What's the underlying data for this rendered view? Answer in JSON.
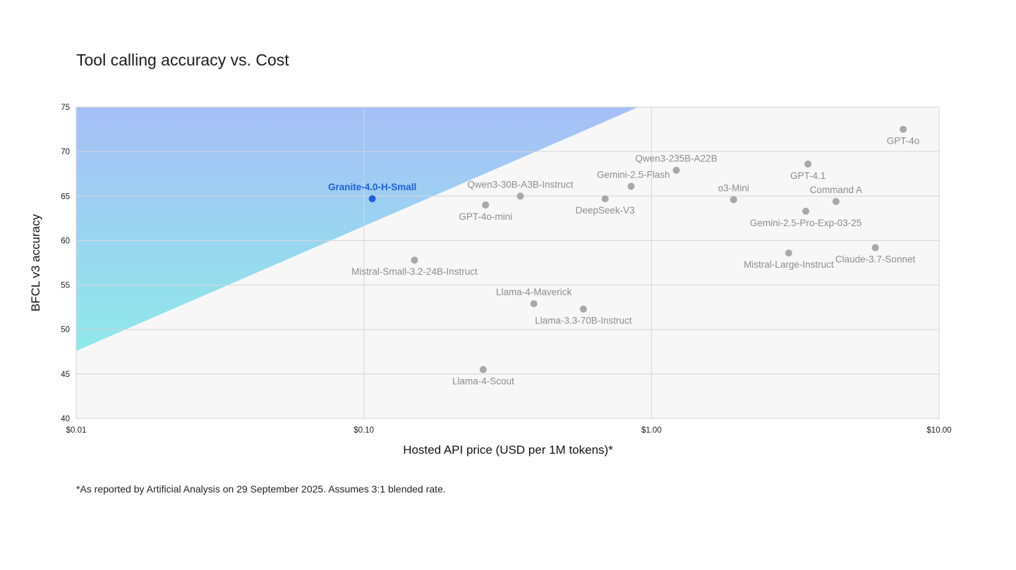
{
  "chart_data": {
    "type": "scatter",
    "title": "Tool calling accuracy vs. Cost",
    "xlabel": "Hosted API price (USD per 1M tokens)*",
    "ylabel": "BFCL v3 accuracy",
    "xscale": "log",
    "xlim": [
      0.01,
      10
    ],
    "ylim": [
      40,
      75
    ],
    "xticks": [
      0.01,
      0.1,
      1,
      10
    ],
    "xtick_labels": [
      "$0.01",
      "$0.10",
      "$1.00",
      "$10.00"
    ],
    "yticks": [
      40,
      45,
      50,
      55,
      60,
      65,
      70,
      75
    ],
    "yticks_labels": [
      "40",
      "45",
      "50",
      "55",
      "60",
      "65",
      "70",
      "75"
    ],
    "grid": true,
    "highlight_region": {
      "x": [
        0.01,
        0.9
      ],
      "y_start": 47.6,
      "y_end": 75
    },
    "points": [
      {
        "name": "Granite-4.0-H-Small",
        "x": 0.107,
        "y": 64.7,
        "highlight": true,
        "label_pos": "above"
      },
      {
        "name": "GPT-4o-mini",
        "x": 0.265,
        "y": 64.0,
        "label_pos": "below"
      },
      {
        "name": "Qwen3-30B-A3B-Instruct",
        "x": 0.35,
        "y": 65.0,
        "label_pos": "above"
      },
      {
        "name": "Mistral-Small-3.2-24B-Instruct",
        "x": 0.15,
        "y": 57.8,
        "label_pos": "below"
      },
      {
        "name": "Llama-4-Maverick",
        "x": 0.39,
        "y": 52.9,
        "label_pos": "above"
      },
      {
        "name": "Llama-3.3-70B-Instruct",
        "x": 0.58,
        "y": 52.3,
        "label_pos": "below"
      },
      {
        "name": "Llama-4-Scout",
        "x": 0.26,
        "y": 45.5,
        "label_pos": "below"
      },
      {
        "name": "DeepSeek-V3",
        "x": 0.69,
        "y": 64.7,
        "label_pos": "below"
      },
      {
        "name": "Gemini-2.5-Flash",
        "x": 0.85,
        "y": 66.1,
        "label_pos": "above-left"
      },
      {
        "name": "Qwen3-235B-A22B",
        "x": 1.22,
        "y": 67.9,
        "label_pos": "above"
      },
      {
        "name": "o3-Mini",
        "x": 1.93,
        "y": 64.6,
        "label_pos": "above"
      },
      {
        "name": "GPT-4.1",
        "x": 3.5,
        "y": 68.6,
        "label_pos": "below"
      },
      {
        "name": "Command A",
        "x": 4.38,
        "y": 64.4,
        "label_pos": "above"
      },
      {
        "name": "Gemini-2.5-Pro-Exp-03-25",
        "x": 3.44,
        "y": 63.3,
        "label_pos": "below"
      },
      {
        "name": "Mistral-Large-Instruct",
        "x": 3.0,
        "y": 58.6,
        "label_pos": "below"
      },
      {
        "name": "Claude-3.7-Sonnet",
        "x": 6.0,
        "y": 59.2,
        "label_pos": "below"
      },
      {
        "name": "GPT-4o",
        "x": 7.5,
        "y": 72.5,
        "label_pos": "below"
      }
    ]
  },
  "footnote": "*As reported by Artificial Analysis on 29 September 2025. Assumes 3:1 blended rate.",
  "colors": {
    "region_top": "#a7bff7",
    "region_bottom": "#8ee9e9",
    "highlight_point": "#1f5fe0",
    "point": "#a8a8a8",
    "plot_bg": "#f7f7f8",
    "grid": "#d6d6d8"
  }
}
